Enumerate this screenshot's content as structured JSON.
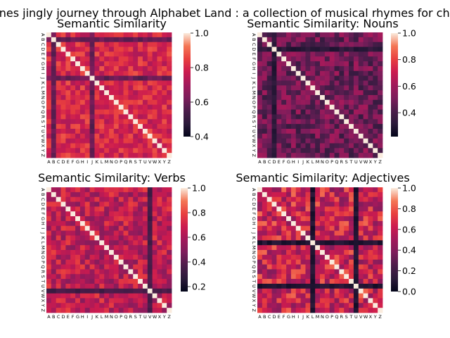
{
  "figure": {
    "suptitle": "Mr. Jones jingly journey through Alphabet Land : a collection of musical rhymes for children"
  },
  "chart_data": [
    {
      "type": "heatmap",
      "title": "Semantic Similarity",
      "x_labels": [
        "A",
        "B",
        "C",
        "D",
        "E",
        "F",
        "G",
        "H",
        "I",
        "J",
        "K",
        "L",
        "M",
        "N",
        "O",
        "P",
        "Q",
        "R",
        "S",
        "T",
        "U",
        "V",
        "W",
        "X",
        "Y",
        "Z"
      ],
      "y_labels": [
        "A",
        "B",
        "C",
        "D",
        "E",
        "F",
        "G",
        "H",
        "I",
        "J",
        "K",
        "L",
        "M",
        "N",
        "O",
        "P",
        "Q",
        "R",
        "S",
        "T",
        "U",
        "V",
        "W",
        "X",
        "Y",
        "Z"
      ],
      "colorbar_range": [
        0.4,
        1.0
      ],
      "colorbar_ticks": [
        "0.4",
        "0.6",
        "0.8",
        "1.0"
      ],
      "low_rows": [
        1,
        9
      ],
      "low_value": 0.55,
      "base_range": [
        0.72,
        0.88
      ],
      "colormap": "rocket"
    },
    {
      "type": "heatmap",
      "title": "Semantic Similarity: Nouns",
      "x_labels": [
        "A",
        "B",
        "C",
        "D",
        "E",
        "F",
        "G",
        "H",
        "I",
        "J",
        "K",
        "L",
        "M",
        "N",
        "O",
        "P",
        "Q",
        "R",
        "S",
        "T",
        "U",
        "V",
        "W",
        "X",
        "Y",
        "Z"
      ],
      "y_labels": [
        "A",
        "B",
        "C",
        "D",
        "E",
        "F",
        "G",
        "H",
        "I",
        "J",
        "K",
        "L",
        "M",
        "N",
        "O",
        "P",
        "Q",
        "R",
        "S",
        "T",
        "U",
        "V",
        "W",
        "X",
        "Y",
        "Z"
      ],
      "colorbar_range": [
        0.22,
        1.0
      ],
      "colorbar_ticks": [
        "0.4",
        "0.6",
        "0.8",
        "1.0"
      ],
      "low_rows": [
        3
      ],
      "low_value": 0.28,
      "base_range": [
        0.35,
        0.62
      ],
      "colormap": "rocket"
    },
    {
      "type": "heatmap",
      "title": "Semantic Similarity: Verbs",
      "x_labels": [
        "A",
        "B",
        "C",
        "D",
        "E",
        "F",
        "G",
        "H",
        "I",
        "J",
        "K",
        "L",
        "M",
        "N",
        "O",
        "P",
        "Q",
        "R",
        "S",
        "T",
        "U",
        "V",
        "W",
        "X",
        "Y",
        "Z"
      ],
      "y_labels": [
        "A",
        "B",
        "C",
        "D",
        "E",
        "F",
        "G",
        "H",
        "I",
        "J",
        "K",
        "L",
        "M",
        "N",
        "O",
        "P",
        "Q",
        "R",
        "S",
        "T",
        "U",
        "V",
        "W",
        "X",
        "Y",
        "Z"
      ],
      "colorbar_range": [
        0.16,
        1.0
      ],
      "colorbar_ticks": [
        "0.2",
        "0.4",
        "0.6",
        "0.8",
        "1.0"
      ],
      "low_rows": [
        21
      ],
      "low_value": 0.3,
      "base_range": [
        0.5,
        0.8
      ],
      "colormap": "rocket"
    },
    {
      "type": "heatmap",
      "title": "Semantic Similarity: Adjectives",
      "x_labels": [
        "A",
        "B",
        "C",
        "D",
        "E",
        "F",
        "G",
        "H",
        "I",
        "J",
        "K",
        "L",
        "M",
        "N",
        "O",
        "P",
        "Q",
        "R",
        "S",
        "T",
        "U",
        "V",
        "W",
        "X",
        "Y",
        "Z"
      ],
      "y_labels": [
        "A",
        "B",
        "C",
        "D",
        "E",
        "F",
        "G",
        "H",
        "I",
        "J",
        "K",
        "L",
        "M",
        "N",
        "O",
        "P",
        "Q",
        "R",
        "S",
        "T",
        "U",
        "V",
        "W",
        "X",
        "Y",
        "Z"
      ],
      "colorbar_range": [
        0.0,
        1.0
      ],
      "colorbar_ticks": [
        "0.0",
        "0.2",
        "0.4",
        "0.6",
        "0.8",
        "1.0"
      ],
      "low_rows": [
        11,
        20
      ],
      "low_value": 0.05,
      "base_range": [
        0.4,
        0.85
      ],
      "colormap": "rocket"
    }
  ]
}
